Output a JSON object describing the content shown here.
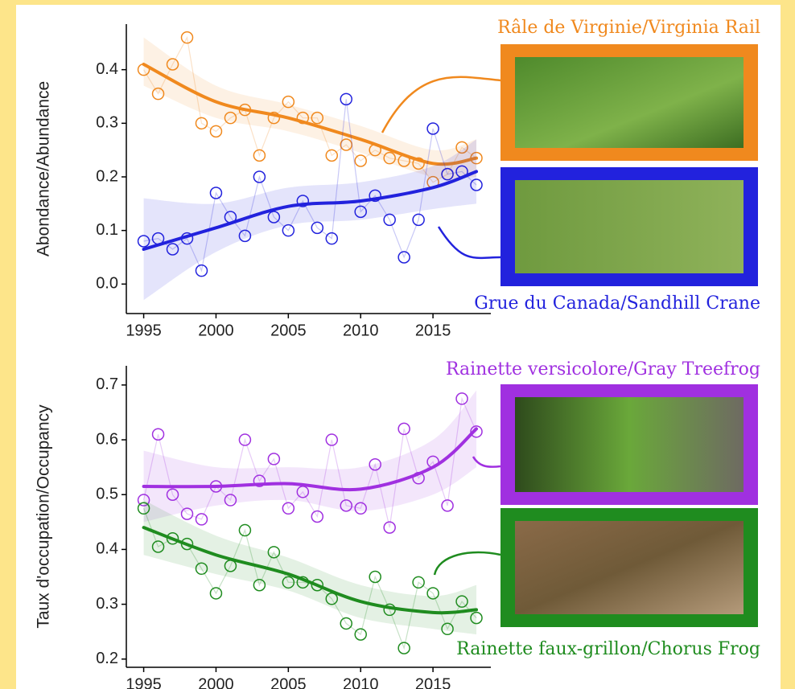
{
  "chart_data": [
    {
      "type": "scatter",
      "y_label": "Abondance/Abundance",
      "x": [
        1995,
        1996,
        1997,
        1998,
        1999,
        2000,
        2001,
        2002,
        2003,
        2004,
        2005,
        2006,
        2007,
        2008,
        2009,
        2010,
        2011,
        2012,
        2013,
        2014,
        2015,
        2016,
        2017,
        2018
      ],
      "xlim": [
        1993.8,
        2019
      ],
      "xticks": [
        1995,
        2000,
        2005,
        2010,
        2015
      ],
      "ylim": [
        -0.055,
        0.485
      ],
      "yticks": [
        {
          "value": 0,
          "label": "0.0"
        },
        0.1,
        0.2,
        0.3,
        0.4
      ],
      "series": [
        {
          "name": "Râle de Virginie/Virginia Rail",
          "color": "#f0891e",
          "values": [
            0.4,
            0.355,
            0.41,
            0.46,
            0.3,
            0.285,
            0.31,
            0.325,
            0.24,
            0.31,
            0.34,
            0.31,
            0.31,
            0.24,
            0.26,
            0.23,
            0.25,
            0.235,
            0.23,
            0.225,
            0.19,
            0.205,
            0.255,
            0.235
          ],
          "trend": {
            "x": [
              1995,
              2000,
              2005,
              2010,
              2015,
              2018
            ],
            "values": [
              0.41,
              0.34,
              0.31,
              0.27,
              0.225,
              0.235
            ],
            "lower": [
              0.37,
              0.31,
              0.285,
              0.245,
              0.2,
              0.2
            ],
            "upper": [
              0.46,
              0.37,
              0.335,
              0.295,
              0.25,
              0.27
            ]
          }
        },
        {
          "name": "Grue du Canada/Sandhill Crane",
          "color": "#2222dd",
          "values": [
            0.08,
            0.085,
            0.065,
            0.085,
            0.025,
            0.17,
            0.125,
            0.09,
            0.2,
            0.125,
            0.1,
            0.155,
            0.105,
            0.085,
            0.345,
            0.135,
            0.165,
            0.12,
            0.05,
            0.12,
            0.29,
            0.205,
            0.21,
            0.185
          ],
          "trend": {
            "x": [
              1995,
              2000,
              2005,
              2010,
              2015,
              2018
            ],
            "values": [
              0.065,
              0.105,
              0.145,
              0.155,
              0.18,
              0.21
            ],
            "lower": [
              -0.03,
              0.06,
              0.11,
              0.12,
              0.14,
              0.15
            ],
            "upper": [
              0.16,
              0.15,
              0.18,
              0.19,
              0.22,
              0.27
            ]
          }
        }
      ]
    },
    {
      "type": "scatter",
      "y_label": "Taux d'occupation/Occupancy",
      "x": [
        1995,
        1996,
        1997,
        1998,
        1999,
        2000,
        2001,
        2002,
        2003,
        2004,
        2005,
        2006,
        2007,
        2008,
        2009,
        2010,
        2011,
        2012,
        2013,
        2014,
        2015,
        2016,
        2017,
        2018
      ],
      "xlim": [
        1993.8,
        2019
      ],
      "xticks": [
        1995,
        2000,
        2005,
        2010,
        2015
      ],
      "ylim": [
        0.185,
        0.735
      ],
      "yticks": [
        0.2,
        0.3,
        0.4,
        0.5,
        0.6,
        0.7
      ],
      "series": [
        {
          "name": "Rainette versicolore/Gray Treefrog",
          "color": "#a030e0",
          "values": [
            0.49,
            0.61,
            0.5,
            0.465,
            0.455,
            0.515,
            0.49,
            0.6,
            0.525,
            0.565,
            0.475,
            0.505,
            0.46,
            0.6,
            0.48,
            0.475,
            0.555,
            0.44,
            0.62,
            0.53,
            0.56,
            0.48,
            0.675,
            0.615
          ],
          "trend": {
            "x": [
              1995,
              2000,
              2005,
              2010,
              2015,
              2018
            ],
            "values": [
              0.515,
              0.515,
              0.52,
              0.51,
              0.55,
              0.62
            ],
            "lower": [
              0.45,
              0.48,
              0.49,
              0.47,
              0.5,
              0.55
            ],
            "upper": [
              0.58,
              0.55,
              0.55,
              0.55,
              0.6,
              0.69
            ]
          }
        },
        {
          "name": "Rainette faux-grillon/Chorus Frog",
          "color": "#1f8c1f",
          "values": [
            0.475,
            0.405,
            0.42,
            0.41,
            0.365,
            0.32,
            0.37,
            0.435,
            0.335,
            0.395,
            0.34,
            0.34,
            0.335,
            0.31,
            0.265,
            0.245,
            0.35,
            0.29,
            0.22,
            0.34,
            0.32,
            0.255,
            0.305,
            0.275
          ],
          "trend": {
            "x": [
              1995,
              2000,
              2005,
              2010,
              2015,
              2018
            ],
            "values": [
              0.44,
              0.39,
              0.355,
              0.305,
              0.285,
              0.29
            ],
            "lower": [
              0.39,
              0.355,
              0.325,
              0.275,
              0.255,
              0.245
            ],
            "upper": [
              0.49,
              0.425,
              0.385,
              0.335,
              0.315,
              0.335
            ]
          }
        }
      ]
    }
  ]
}
